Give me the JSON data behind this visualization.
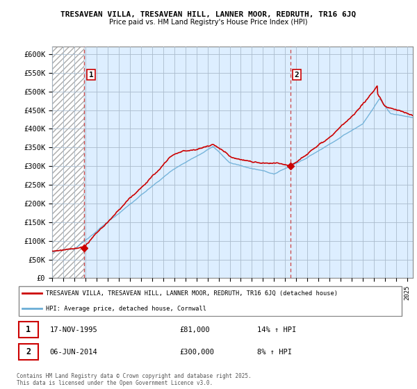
{
  "title_line1": "TRESAVEAN VILLA, TRESAVEAN HILL, LANNER MOOR, REDRUTH, TR16 6JQ",
  "title_line2": "Price paid vs. HM Land Registry's House Price Index (HPI)",
  "ylim": [
    0,
    620000
  ],
  "yticks": [
    0,
    50000,
    100000,
    150000,
    200000,
    250000,
    300000,
    350000,
    400000,
    450000,
    500000,
    550000,
    600000
  ],
  "ytick_labels": [
    "£0",
    "£50K",
    "£100K",
    "£150K",
    "£200K",
    "£250K",
    "£300K",
    "£350K",
    "£400K",
    "£450K",
    "£500K",
    "£550K",
    "£600K"
  ],
  "hpi_color": "#6baed6",
  "price_color": "#cc0000",
  "dashed_line_color": "#cc4444",
  "bg_color": "#ddeeff",
  "grid_color": "#bbccdd",
  "point1_x": 1995.9,
  "point1_y": 81000,
  "point2_x": 2014.45,
  "point2_y": 300000,
  "legend_line1": "TRESAVEAN VILLA, TRESAVEAN HILL, LANNER MOOR, REDRUTH, TR16 6JQ (detached house)",
  "legend_line2": "HPI: Average price, detached house, Cornwall",
  "xmin": 1993,
  "xmax": 2025.5,
  "footnote": "Contains HM Land Registry data © Crown copyright and database right 2025.\nThis data is licensed under the Open Government Licence v3.0."
}
